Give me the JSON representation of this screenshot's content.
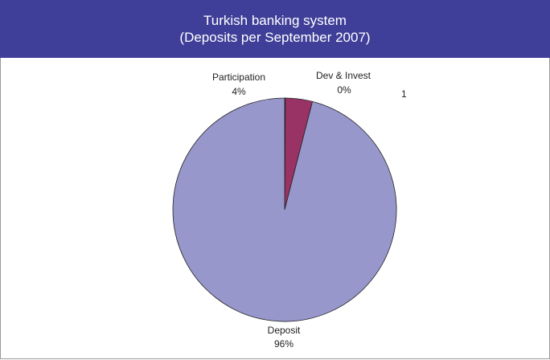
{
  "header": {
    "line1": "Turkish banking system",
    "line2": "(Deposits per September 2007)"
  },
  "stray_text": "1",
  "colors": {
    "header_bg": "#3f3f99",
    "deposit": "#9797cb",
    "participation": "#993366",
    "dev_invest": "#ffffcc"
  },
  "chart_data": {
    "type": "pie",
    "title": "Turkish banking system (Deposits per September 2007)",
    "start_angle_deg": 0,
    "direction": "clockwise",
    "slices": [
      {
        "name": "Dev & Invest",
        "percent_label": "0%",
        "value": 0.1,
        "color": "#ffffcc"
      },
      {
        "name": "Participation",
        "percent_label": "4%",
        "value": 3.9,
        "color": "#993366"
      },
      {
        "name": "Deposit",
        "percent_label": "96%",
        "value": 96.0,
        "color": "#9797cb"
      }
    ]
  }
}
